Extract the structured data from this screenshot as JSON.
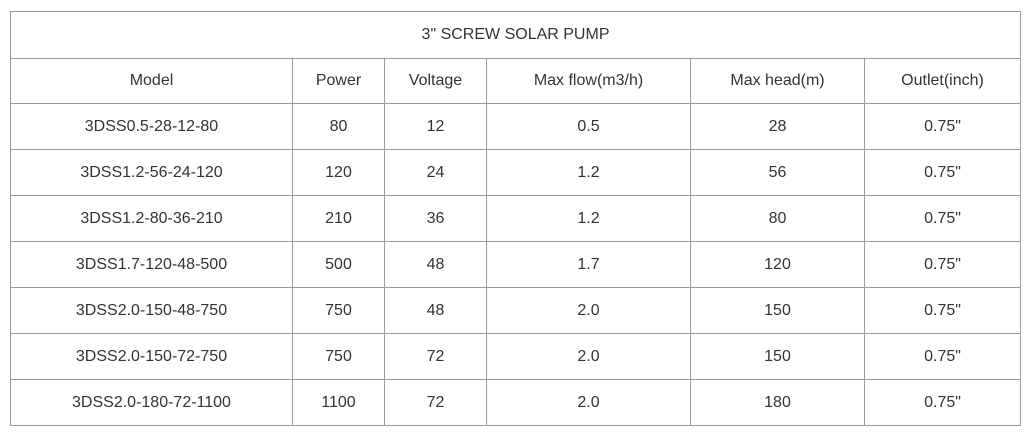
{
  "table": {
    "title": "3\" SCREW SOLAR PUMP",
    "headers": [
      "Model",
      "Power",
      "Voltage",
      "Max flow(m3/h)",
      "Max head(m)",
      "Outlet(inch)"
    ],
    "rows": [
      [
        "3DSS0.5-28-12-80",
        "80",
        "12",
        "0.5",
        "28",
        "0.75\""
      ],
      [
        "3DSS1.2-56-24-120",
        "120",
        "24",
        "1.2",
        "56",
        "0.75\""
      ],
      [
        "3DSS1.2-80-36-210",
        "210",
        "36",
        "1.2",
        "80",
        "0.75\""
      ],
      [
        "3DSS1.7-120-48-500",
        "500",
        "48",
        "1.7",
        "120",
        "0.75\""
      ],
      [
        "3DSS2.0-150-48-750",
        "750",
        "48",
        "2.0",
        "150",
        "0.75\""
      ],
      [
        "3DSS2.0-150-72-750",
        "750",
        "72",
        "2.0",
        "150",
        "0.75\""
      ],
      [
        "3DSS2.0-180-72-1100",
        "1100",
        "72",
        "2.0",
        "180",
        "0.75\""
      ]
    ]
  }
}
